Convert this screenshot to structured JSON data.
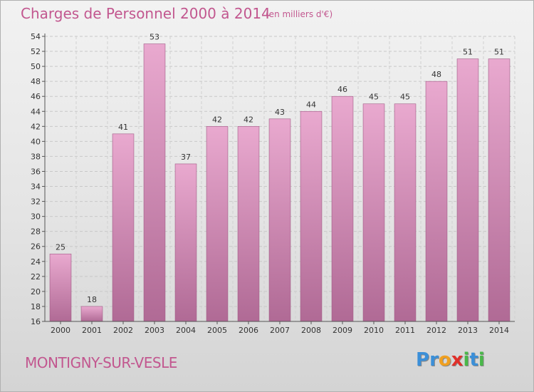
{
  "header": {
    "title": "Charges de Personnel 2000 à 2014",
    "subtitle": "(en milliers d'€)"
  },
  "footer": {
    "commune": "MONTIGNY-SUR-VESLE",
    "logo_letters": [
      "P",
      "r",
      "o",
      "x",
      "i",
      "t",
      "i"
    ]
  },
  "colors": {
    "bar_top": "#e9a9cf",
    "bar_bottom": "#b06a95",
    "text_accent": "#c2578f",
    "logo": [
      "#3b8fd8",
      "#3b8fd8",
      "#f0a020",
      "#e0302a",
      "#49b849",
      "#3b8fd8",
      "#49b849"
    ]
  },
  "chart_data": {
    "type": "bar",
    "title": "Charges de Personnel 2000 à 2014",
    "subtitle": "(en milliers d'€)",
    "categories": [
      "2000",
      "2001",
      "2002",
      "2003",
      "2004",
      "2005",
      "2006",
      "2007",
      "2008",
      "2009",
      "2010",
      "2011",
      "2012",
      "2013",
      "2014"
    ],
    "values": [
      25,
      18,
      41,
      53,
      37,
      42,
      42,
      43,
      44,
      46,
      45,
      45,
      48,
      51,
      51
    ],
    "ylim": [
      16,
      54
    ],
    "yticks": [
      16,
      18,
      20,
      22,
      24,
      26,
      28,
      30,
      32,
      34,
      36,
      38,
      40,
      42,
      44,
      46,
      48,
      50,
      52,
      54
    ],
    "grid": true,
    "legend": "none"
  }
}
